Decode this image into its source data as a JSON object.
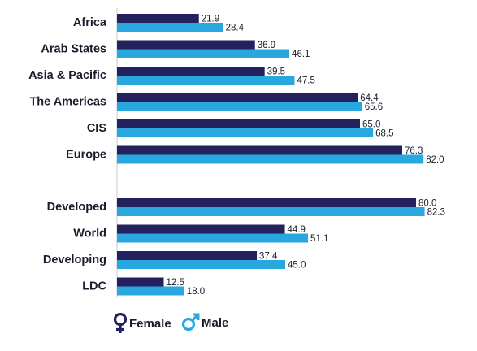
{
  "chart_data": {
    "type": "bar",
    "orientation": "horizontal",
    "categories": [
      "Africa",
      "Arab States",
      "Asia & Pacific",
      "The Americas",
      "CIS",
      "Europe",
      "Developed",
      "World",
      "Developing",
      "LDC"
    ],
    "groups": [
      [
        "Africa",
        "Arab States",
        "Asia & Pacific",
        "The Americas",
        "CIS",
        "Europe"
      ],
      [
        "Developed",
        "World",
        "Developing",
        "LDC"
      ]
    ],
    "series": [
      {
        "name": "Female",
        "color": "#23215e",
        "values": [
          21.9,
          36.9,
          39.5,
          64.4,
          65.0,
          76.3,
          80.0,
          44.9,
          37.4,
          12.5
        ],
        "labels": [
          "21.9",
          "36.9",
          "39.5",
          "64.4",
          "65.0",
          "76.3",
          "80.0",
          "44.9",
          "37.4",
          "12.5"
        ]
      },
      {
        "name": "Male",
        "color": "#29a8e0",
        "values": [
          28.4,
          46.1,
          47.5,
          65.6,
          68.5,
          82.0,
          82.3,
          51.1,
          45.0,
          18.0
        ],
        "labels": [
          "28.4",
          "46.1",
          "47.5",
          "65.6",
          "68.5",
          "82.0",
          "82.3",
          "51.1",
          "45.0",
          "18.0"
        ]
      }
    ],
    "xlim": [
      0,
      100
    ],
    "grid": false,
    "legend": "bottom-left"
  },
  "legend": {
    "female": {
      "label": "Female",
      "icon": "female-symbol-icon",
      "color": "#23215e"
    },
    "male": {
      "label": "Male",
      "icon": "male-symbol-icon",
      "color": "#29a8e0"
    }
  }
}
